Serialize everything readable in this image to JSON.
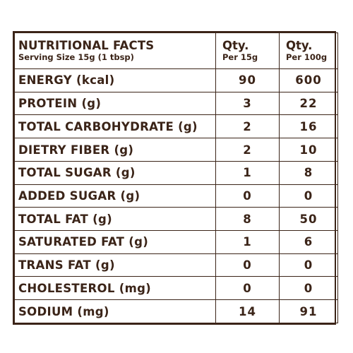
{
  "header": {
    "title": "NUTRITIONAL FACTS",
    "serving": "Serving Size 15g (1 tbsp)",
    "col1_qty": "Qty.",
    "col1_per": "Per 15g",
    "col2_qty": "Qty.",
    "col2_per": "Per 100g"
  },
  "rows": [
    {
      "label": "ENERGY (kcal)",
      "per15": "90",
      "per100": "600"
    },
    {
      "label": "PROTEIN (g)",
      "per15": "3",
      "per100": "22"
    },
    {
      "label": "TOTAL CARBOHYDRATE (g)",
      "per15": "2",
      "per100": "16"
    },
    {
      "label": "DIETRY FIBER (g)",
      "per15": "2",
      "per100": "10"
    },
    {
      "label": "TOTAL SUGAR (g)",
      "per15": "1",
      "per100": "8"
    },
    {
      "label": "ADDED SUGAR (g)",
      "per15": "0",
      "per100": "0"
    },
    {
      "label": "TOTAL FAT (g)",
      "per15": "8",
      "per100": "50"
    },
    {
      "label": "SATURATED FAT (g)",
      "per15": "1",
      "per100": "6"
    },
    {
      "label": "TRANS FAT (g)",
      "per15": "0",
      "per100": "0"
    },
    {
      "label": "CHOLESTEROL (mg)",
      "per15": "0",
      "per100": "0"
    },
    {
      "label": "SODIUM (mg)",
      "per15": "14",
      "per100": "91"
    }
  ],
  "colors": {
    "text": "#3b2418",
    "border": "#3b2418",
    "background": "#ffffff"
  }
}
